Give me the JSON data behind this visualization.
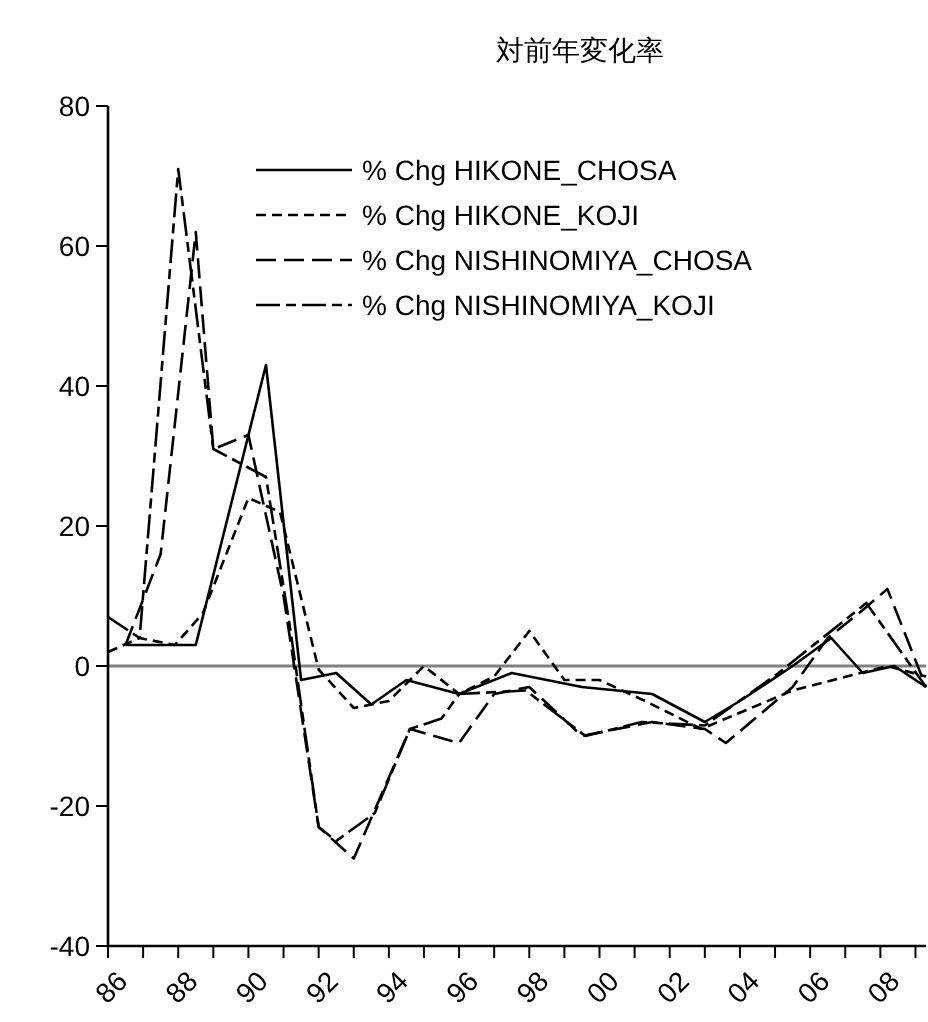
{
  "chart_data": {
    "type": "line",
    "title": "対前年変化率",
    "xlim": [
      1986,
      2009.3
    ],
    "xticks": [
      {
        "value": 1986,
        "label": "86"
      },
      {
        "value": 1987,
        "label": null
      },
      {
        "value": 1988,
        "label": "88"
      },
      {
        "value": 1989,
        "label": null
      },
      {
        "value": 1990,
        "label": "90"
      },
      {
        "value": 1991,
        "label": null
      },
      {
        "value": 1992,
        "label": "92"
      },
      {
        "value": 1993,
        "label": null
      },
      {
        "value": 1994,
        "label": "94"
      },
      {
        "value": 1995,
        "label": null
      },
      {
        "value": 1996,
        "label": "96"
      },
      {
        "value": 1997,
        "label": null
      },
      {
        "value": 1998,
        "label": "98"
      },
      {
        "value": 1999,
        "label": null
      },
      {
        "value": 2000,
        "label": "00"
      },
      {
        "value": 2001,
        "label": null
      },
      {
        "value": 2002,
        "label": "02"
      },
      {
        "value": 2003,
        "label": null
      },
      {
        "value": 2004,
        "label": "04"
      },
      {
        "value": 2005,
        "label": null
      },
      {
        "value": 2006,
        "label": "06"
      },
      {
        "value": 2007,
        "label": null
      },
      {
        "value": 2008,
        "label": "08"
      },
      {
        "value": 2009,
        "label": null
      }
    ],
    "ylim": [
      -40,
      80
    ],
    "yticks": [
      -40,
      -20,
      0,
      20,
      40,
      60,
      80
    ],
    "grid": false,
    "legend": "top",
    "marker": "none",
    "ref_lines": [
      {
        "axis": "y",
        "value": 0,
        "color": "#808080"
      }
    ],
    "series": [
      {
        "name": "% Chg HIKONE_CHOSA",
        "color": "#000000",
        "line_style": "solid",
        "x": [
          1986.5,
          1988.5,
          1990.5,
          1991.5,
          1992.5,
          1993.5,
          1994.5,
          1996,
          1997.5,
          1999.5,
          2001.5,
          2003,
          2004,
          2005.5,
          2006.6,
          2007.5,
          2008.4,
          2009.3
        ],
        "values": [
          3,
          3,
          43,
          -2,
          -1,
          -5.5,
          -2,
          -4,
          -1,
          -3,
          -4,
          -8,
          -5,
          0,
          4,
          -1,
          0,
          -3
        ]
      },
      {
        "name": "% Chg HIKONE_KOJI",
        "color": "#000000",
        "line_style": "dashed",
        "x": [
          1986,
          1986.9,
          1987.9,
          1988.7,
          1990,
          1990.9,
          1992,
          1993,
          1994,
          1995,
          1996,
          1997,
          1998,
          1999,
          2000,
          2001.3,
          2002.9,
          2005.5,
          2008.2,
          2009.3
        ],
        "values": [
          2,
          4,
          3,
          7.5,
          24,
          22,
          -0.5,
          -6,
          -5,
          0,
          -4,
          -1.5,
          5,
          -2,
          -2,
          -5,
          -9,
          -3.5,
          0,
          -1.5
        ]
      },
      {
        "name": "% Chg NISHINOMIYA_CHOSA",
        "color": "#000000",
        "line_style": "longdash",
        "x": [
          1986.5,
          1987.5,
          1988.5,
          1989,
          1990,
          1991,
          1992,
          1993,
          1994.6,
          1996,
          1997,
          1998,
          1999.5,
          2001.5,
          2003,
          2003.6,
          2005.5,
          2006.5,
          2007.5,
          2008.2,
          2009.3
        ],
        "values": [
          3,
          16,
          62,
          31,
          33,
          10,
          -23,
          -27.5,
          -9,
          -11,
          -4,
          -3,
          -10,
          -8,
          -9,
          -11,
          -3,
          4,
          8,
          11,
          -3
        ]
      },
      {
        "name": "% Chg NISHINOMIYA_KOJI",
        "color": "#000000",
        "line_style": "dashdot",
        "x": [
          1986,
          1986.9,
          1988,
          1989,
          1990.5,
          1991.2,
          1992,
          1992.5,
          1993.6,
          1994.6,
          1995.5,
          1996,
          1997.9,
          1999.6,
          2001.2,
          2003,
          2005.1,
          2007.6,
          2009.3
        ],
        "values": [
          7,
          4,
          71,
          31,
          27,
          5,
          -23,
          -25,
          -21,
          -9,
          -7.5,
          -4,
          -3.5,
          -10,
          -8,
          -8.5,
          -1,
          9,
          -3
        ]
      }
    ]
  }
}
